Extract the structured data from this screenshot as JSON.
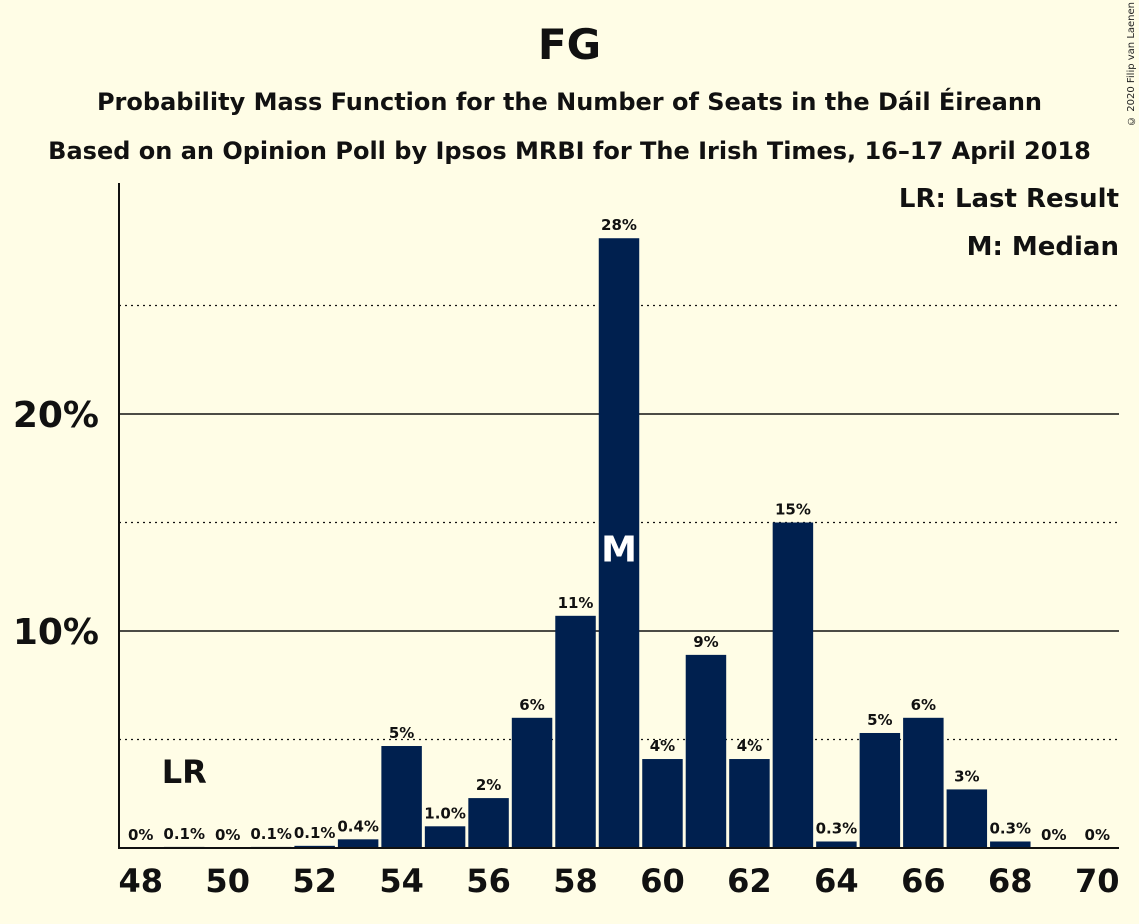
{
  "chart_data": {
    "type": "bar",
    "title": "FG",
    "subtitle": "Probability Mass Function for the Number of Seats in the Dáil Éireann",
    "subtitle2": "Based on an Opinion Poll by Ipsos MRBI for The Irish Times, 16–17 April 2018",
    "copyright": "© 2020 Filip van Laenen",
    "legend": [
      "LR: Last Result",
      "M: Median"
    ],
    "legend_position": "top-right",
    "bar_color": "#00204F",
    "categories": [
      48,
      49,
      50,
      51,
      52,
      53,
      54,
      55,
      56,
      57,
      58,
      59,
      60,
      61,
      62,
      63,
      64,
      65,
      66,
      67,
      68,
      69,
      70
    ],
    "values": [
      0,
      0.05,
      0,
      0.05,
      0.1,
      0.4,
      4.7,
      1.0,
      2.3,
      6.0,
      10.7,
      28.1,
      4.1,
      8.9,
      4.1,
      15.0,
      0.3,
      5.3,
      6.0,
      2.7,
      0.3,
      0,
      0
    ],
    "data_labels": [
      "0%",
      "0.1%",
      "0%",
      "0.1%",
      "0.1%",
      "0.4%",
      "5%",
      "1.0%",
      "2%",
      "6%",
      "11%",
      "28%",
      "4%",
      "9%",
      "4%",
      "15%",
      "0.3%",
      "5%",
      "6%",
      "3%",
      "0.3%",
      "0%",
      "0%"
    ],
    "x_tick_labels": [
      "48",
      "50",
      "52",
      "54",
      "56",
      "58",
      "60",
      "62",
      "64",
      "66",
      "68",
      "70"
    ],
    "y_ticks": [
      {
        "value": 10,
        "label": "10%"
      },
      {
        "value": 20,
        "label": "20%"
      }
    ],
    "y_minor_gridlines": [
      5,
      15,
      25
    ],
    "ylim": [
      0,
      30.5
    ],
    "last_result": {
      "seat": 49,
      "label": "LR"
    },
    "median": {
      "seat": 59,
      "label": "M"
    }
  }
}
